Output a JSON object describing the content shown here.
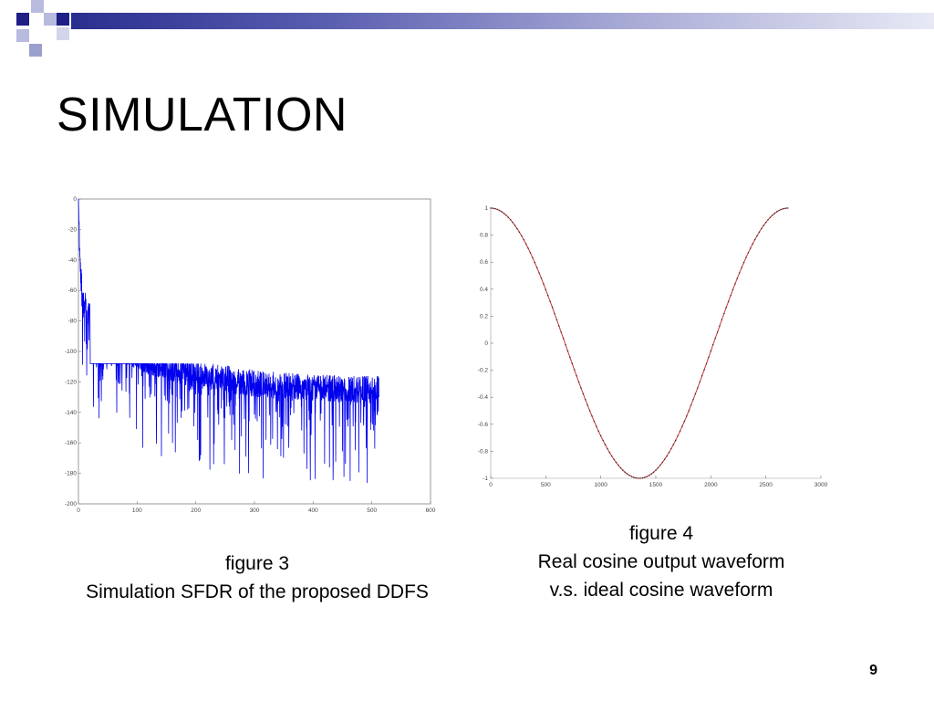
{
  "slide": {
    "title": "SIMULATION",
    "page_number": "9",
    "theme_colors": {
      "dark_square": "#1f1f86",
      "light_square": "#9c9fcc",
      "bar_start": "#2a2e8f",
      "bar_end": "#e8e9f5"
    }
  },
  "captions": {
    "figure3": {
      "label": "figure 3",
      "text": "Simulation SFDR of the proposed DDFS"
    },
    "figure4": {
      "label": "figure 4",
      "line1": "Real cosine output waveform",
      "line2": "v.s. ideal cosine waveform"
    }
  },
  "chart_data": [
    {
      "type": "line",
      "title": "",
      "xlabel": "",
      "ylabel": "",
      "xlim": [
        0,
        600
      ],
      "ylim": [
        -200,
        0
      ],
      "x_ticks": [
        "0",
        "100",
        "200",
        "300",
        "400",
        "500",
        "600"
      ],
      "y_ticks": [
        "0",
        "-20",
        "-40",
        "-60",
        "-80",
        "-100",
        "-120",
        "-140",
        "-160",
        "-180",
        "-200"
      ],
      "series": [
        {
          "color": "#0000ee",
          "x_range": [
            0,
            512
          ],
          "envelope_x": [
            0,
            2,
            5,
            10,
            20,
            40,
            60,
            100,
            150,
            200,
            250,
            300,
            350,
            400,
            512
          ],
          "envelope_mean": [
            0,
            -35,
            -55,
            -68,
            -78,
            -88,
            -95,
            -103,
            -110,
            -115,
            -118,
            -121,
            -123,
            -124,
            -125
          ],
          "noise_floor_min": -190,
          "noise_floor_max": -108
        }
      ],
      "grid": false
    },
    {
      "type": "line",
      "title": "",
      "xlabel": "",
      "ylabel": "",
      "xlim": [
        0,
        3000
      ],
      "ylim": [
        -1,
        1
      ],
      "x_ticks": [
        "0",
        "500",
        "1000",
        "1500",
        "2000",
        "2500",
        "3000"
      ],
      "y_ticks": [
        "1",
        "0.8",
        "0.6",
        "0.4",
        "0.2",
        "0",
        "-0.2",
        "-0.4",
        "-0.6",
        "-0.8",
        "-1"
      ],
      "series": [
        {
          "name_shown": false,
          "kind": "ideal",
          "color": "#cc3333",
          "x_range": [
            0,
            2700
          ],
          "period": 2700,
          "amplitude": 1
        },
        {
          "name_shown": false,
          "kind": "real",
          "color": "#222222",
          "marker": "dot",
          "x_range": [
            0,
            2700
          ],
          "period": 2700,
          "amplitude": 1,
          "sample_step": 20
        }
      ],
      "grid": false
    }
  ]
}
